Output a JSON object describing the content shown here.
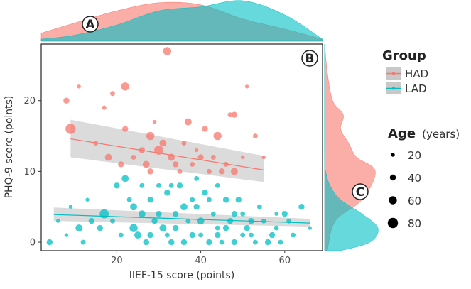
{
  "chart_data": {
    "type": "scatter",
    "xlabel": "IIEF-15 score (points)",
    "ylabel": "PHQ-9 score (points)",
    "xlim": [
      2,
      69
    ],
    "ylim": [
      -1.2,
      28
    ],
    "x_ticks": [
      20,
      40,
      60
    ],
    "y_ticks": [
      0,
      10,
      20
    ],
    "panel_labels": {
      "main": "B",
      "top": "A",
      "right": "C"
    },
    "colors": {
      "HAD": "#f8766d",
      "LAD": "#00bfc4",
      "band": "#999999"
    },
    "legend_group": {
      "title": "Group",
      "entries": [
        {
          "label": "HAD",
          "color": "#f8766d"
        },
        {
          "label": "LAD",
          "color": "#00bfc4"
        }
      ]
    },
    "legend_size": {
      "title": "Age",
      "unit": "(years)",
      "entries": [
        {
          "label": "20",
          "age": 20
        },
        {
          "label": "40",
          "age": 40
        },
        {
          "label": "60",
          "age": 60
        },
        {
          "label": "80",
          "age": 80
        }
      ]
    },
    "series": [
      {
        "name": "HAD",
        "points": [
          [
            32,
            27,
            60
          ],
          [
            8,
            20,
            40
          ],
          [
            11,
            22,
            20
          ],
          [
            19,
            21,
            30
          ],
          [
            22,
            22,
            60
          ],
          [
            17,
            19,
            25
          ],
          [
            9,
            16,
            80
          ],
          [
            29,
            17,
            20
          ],
          [
            51,
            22,
            20
          ],
          [
            48,
            18,
            40
          ],
          [
            47,
            18,
            30
          ],
          [
            18,
            12,
            50
          ],
          [
            22,
            16,
            40
          ],
          [
            28,
            15,
            60
          ],
          [
            31,
            14,
            50
          ],
          [
            36,
            14,
            30
          ],
          [
            41,
            16,
            40
          ],
          [
            44,
            15,
            60
          ],
          [
            37,
            17,
            50
          ],
          [
            26,
            13,
            40
          ],
          [
            30,
            13,
            70
          ],
          [
            33,
            12,
            50
          ],
          [
            24,
            12,
            30
          ],
          [
            21,
            11,
            40
          ],
          [
            27,
            11,
            50
          ],
          [
            34,
            11,
            40
          ],
          [
            38,
            11,
            30
          ],
          [
            40,
            12,
            40
          ],
          [
            42,
            10,
            30
          ],
          [
            45,
            10,
            40
          ],
          [
            48,
            10,
            50
          ],
          [
            50,
            12,
            20
          ],
          [
            55,
            12,
            20
          ],
          [
            35,
            10,
            30
          ],
          [
            28,
            10,
            40
          ],
          [
            43,
            12,
            30
          ],
          [
            46,
            11,
            30
          ],
          [
            39,
            13,
            20
          ],
          [
            53,
            15,
            30
          ],
          [
            15,
            14,
            30
          ]
        ]
      },
      {
        "name": "LAD",
        "points": [
          [
            4,
            0,
            40
          ],
          [
            8,
            1,
            20
          ],
          [
            11,
            2,
            50
          ],
          [
            17,
            4,
            70
          ],
          [
            20,
            8,
            40
          ],
          [
            22,
            9,
            50
          ],
          [
            14,
            3,
            40
          ],
          [
            24,
            2,
            60
          ],
          [
            26,
            4,
            50
          ],
          [
            28,
            6,
            40
          ],
          [
            30,
            8,
            30
          ],
          [
            32,
            7,
            40
          ],
          [
            34,
            2,
            40
          ],
          [
            36,
            5,
            50
          ],
          [
            38,
            1,
            40
          ],
          [
            40,
            3,
            50
          ],
          [
            42,
            0,
            40
          ],
          [
            44,
            2,
            30
          ],
          [
            46,
            6,
            40
          ],
          [
            48,
            4,
            40
          ],
          [
            50,
            1,
            30
          ],
          [
            52,
            3,
            40
          ],
          [
            54,
            5,
            30
          ],
          [
            56,
            0,
            40
          ],
          [
            58,
            2,
            30
          ],
          [
            60,
            4,
            40
          ],
          [
            62,
            1,
            30
          ],
          [
            64,
            5,
            40
          ],
          [
            66,
            2,
            20
          ],
          [
            19,
            3,
            30
          ],
          [
            23,
            6,
            30
          ],
          [
            25,
            1,
            50
          ],
          [
            27,
            0,
            40
          ],
          [
            29,
            3,
            40
          ],
          [
            31,
            2,
            50
          ],
          [
            33,
            0,
            40
          ],
          [
            35,
            8,
            40
          ],
          [
            37,
            3,
            30
          ],
          [
            39,
            5,
            40
          ],
          [
            41,
            7,
            40
          ],
          [
            43,
            4,
            30
          ],
          [
            45,
            0,
            30
          ],
          [
            47,
            3,
            40
          ],
          [
            49,
            6,
            40
          ],
          [
            51,
            2,
            40
          ],
          [
            53,
            0,
            30
          ],
          [
            55,
            3,
            30
          ],
          [
            57,
            1,
            40
          ],
          [
            59,
            0,
            30
          ],
          [
            61,
            3,
            30
          ],
          [
            12,
            0,
            30
          ],
          [
            16,
            2,
            40
          ],
          [
            21,
            1,
            30
          ],
          [
            28,
            1,
            40
          ],
          [
            32,
            1,
            30
          ],
          [
            36,
            0,
            40
          ],
          [
            40,
            1,
            30
          ],
          [
            44,
            1,
            40
          ],
          [
            48,
            0,
            40
          ],
          [
            52,
            1,
            30
          ],
          [
            9,
            5,
            20
          ],
          [
            13,
            6,
            20
          ],
          [
            6,
            3,
            20
          ],
          [
            30,
            4,
            40
          ],
          [
            34,
            4,
            40
          ],
          [
            38,
            6,
            30
          ],
          [
            42,
            6,
            30
          ],
          [
            46,
            2,
            40
          ],
          [
            50,
            4,
            30
          ],
          [
            58,
            4,
            20
          ],
          [
            26,
            8,
            30
          ],
          [
            33,
            8,
            30
          ],
          [
            39,
            9,
            30
          ],
          [
            24,
            5,
            50
          ],
          [
            44,
            8,
            30
          ]
        ]
      }
    ],
    "fits": [
      {
        "name": "HAD",
        "x": [
          9,
          55
        ],
        "y": [
          14.6,
          10.2
        ],
        "band": [
          [
            12.0,
            17.3
          ],
          [
            8.5,
            12.2
          ]
        ]
      },
      {
        "name": "LAD",
        "x": [
          5,
          66
        ],
        "y": [
          3.9,
          2.7
        ],
        "band": [
          [
            3.0,
            4.9
          ],
          [
            2.2,
            3.3
          ]
        ]
      }
    ],
    "density_x": {
      "HAD": {
        "x": [
          2,
          10,
          20,
          30,
          40,
          50,
          60,
          69
        ],
        "y": [
          0.2,
          0.45,
          0.75,
          0.95,
          0.9,
          0.55,
          0.3,
          0.05
        ]
      },
      "LAD": {
        "x": [
          2,
          10,
          20,
          30,
          40,
          50,
          60,
          69
        ],
        "y": [
          0.05,
          0.15,
          0.4,
          0.75,
          0.85,
          1.0,
          0.65,
          0.05
        ]
      }
    },
    "density_y": {
      "HAD": {
        "y": [
          -1.2,
          3,
          6,
          10,
          12,
          14,
          16,
          18,
          20,
          24,
          28
        ],
        "d": [
          0.05,
          0.2,
          0.7,
          0.95,
          0.6,
          0.45,
          0.3,
          0.35,
          0.15,
          0.05,
          0.0
        ]
      },
      "LAD": {
        "y": [
          -1.2,
          0,
          2,
          4,
          6,
          8,
          10,
          12,
          28
        ],
        "d": [
          0.3,
          0.85,
          1.0,
          0.7,
          0.3,
          0.1,
          0.02,
          0.0,
          0.0
        ]
      }
    }
  }
}
